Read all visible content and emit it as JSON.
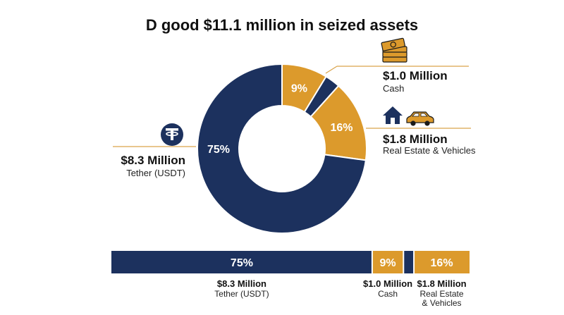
{
  "title": "D good $11.1 million in seized assets",
  "colors": {
    "navy": "#1c315e",
    "gold": "#dc9a2c",
    "white": "#ffffff",
    "line": "#d9a34a"
  },
  "icons": {
    "tether": "tether-icon",
    "cash": "cash-stack-icon",
    "house": "house-icon",
    "car": "car-icon"
  },
  "chart_data": [
    {
      "type": "pie",
      "title": "D good $11.1 million in seized assets",
      "donut": true,
      "categories": [
        "Tether (USDT)",
        "Cash",
        "",
        "Real Estate & Vehicles"
      ],
      "values": [
        75,
        9,
        3,
        16
      ],
      "labels": [
        "75%",
        "9%",
        "",
        "16%"
      ],
      "amounts": [
        "$8.3 Million",
        "$1.0 Million",
        "",
        "$1.8 Million"
      ]
    },
    {
      "type": "bar",
      "stacked": true,
      "orientation": "horizontal",
      "categories": [
        "Tether (USDT)",
        "Cash",
        "",
        "Real Estate & Vehicles"
      ],
      "values": [
        75,
        9,
        3,
        16
      ],
      "labels": [
        "75%",
        "9%",
        "",
        "16%"
      ],
      "amounts": [
        "$8.3 Million",
        "$1.0 Million",
        "",
        "$1.8 Million"
      ],
      "sublabels": [
        [
          "Tether (USDT)"
        ],
        [
          "Cash"
        ],
        [
          ""
        ],
        [
          "Real Estate",
          "& Vehicles"
        ]
      ]
    }
  ]
}
